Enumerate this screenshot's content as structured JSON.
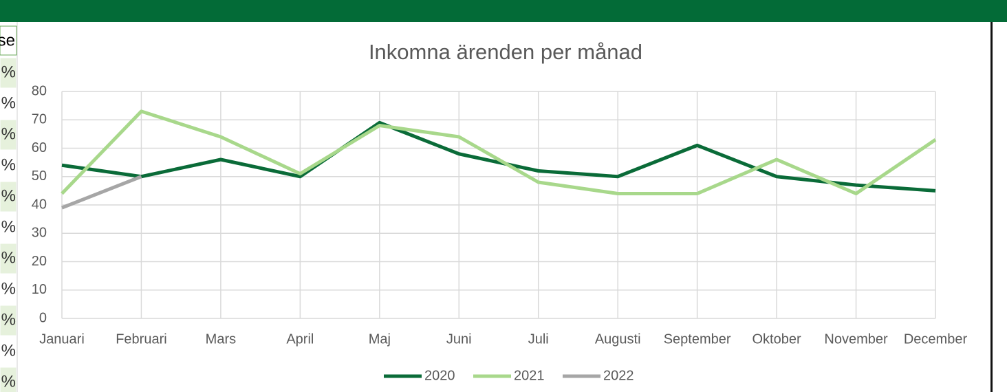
{
  "sheet": {
    "header": "se",
    "cells": [
      "%",
      "%",
      "%",
      "%",
      "%",
      "%",
      "%",
      "%",
      "%",
      "%",
      "%"
    ]
  },
  "chart_data": {
    "type": "line",
    "title": "Inkomna ärenden per månad",
    "categories": [
      "Januari",
      "Februari",
      "Mars",
      "April",
      "Maj",
      "Juni",
      "Juli",
      "Augusti",
      "September",
      "Oktober",
      "November",
      "December"
    ],
    "series": [
      {
        "name": "2020",
        "color": "#0a6b38",
        "values": [
          54,
          50,
          56,
          50,
          69,
          58,
          52,
          50,
          61,
          50,
          47,
          45
        ]
      },
      {
        "name": "2021",
        "color": "#a8d88b",
        "values": [
          44,
          73,
          64,
          51,
          68,
          64,
          48,
          44,
          44,
          56,
          44,
          63
        ]
      },
      {
        "name": "2022",
        "color": "#a6a6a6",
        "values": [
          39,
          50,
          null,
          null,
          null,
          null,
          null,
          null,
          null,
          null,
          null,
          null
        ]
      }
    ],
    "ylim": [
      0,
      80
    ],
    "yticks": [
      0,
      10,
      20,
      30,
      40,
      50,
      60,
      70,
      80
    ],
    "grid": true,
    "legend": "bottom"
  }
}
